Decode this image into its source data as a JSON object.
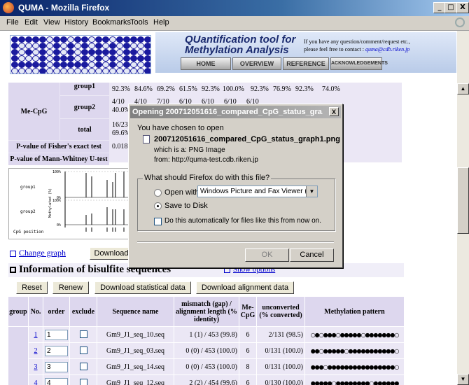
{
  "window": {
    "title": "QUMA - Mozilla Firefox",
    "controls": [
      "_",
      "□",
      "X"
    ]
  },
  "menu": [
    "File",
    "Edit",
    "View",
    "History",
    "Bookmarks",
    "Tools",
    "Help"
  ],
  "header": {
    "title_line1": "QUantification tool for",
    "title_line2": "Methylation Analysis",
    "contact_line1": "If you have any question/comment/request etc.,",
    "contact_line2": "please feel free to contact :",
    "contact_email": "quma@cdb.riken.jp",
    "nav": [
      "HOME",
      "OVERVIEW",
      "REFERENCE",
      "ACKNOWLEDGEMENTS"
    ]
  },
  "results": {
    "group1_label": "group1",
    "group1_values": [
      "92.3%",
      "84.6%",
      "69.2%",
      "61.5%",
      "92.3%",
      "100.0%",
      "92.3%",
      "76.9%",
      "92.3%",
      "74.0%"
    ],
    "mecpg_label": "Me-CpG",
    "group2_label": "group2",
    "group2_top": [
      "4/10",
      "4/10",
      "7/10",
      "6/10",
      "6/10",
      "6/10",
      "6/10"
    ],
    "group2_bottom": "40.0%",
    "total_label": "total",
    "total_top": "16/23",
    "total_bottom": "69.6%",
    "fisher_label": "P-value of Fisher's exact test",
    "fisher_value": "0.018",
    "mw_label": "P-value of Mann-Whitney U-test"
  },
  "graph": {
    "group1_label": "group1",
    "group2_label": "group2",
    "cpg_label": "CpG position",
    "ylabel": "Methylated (%)",
    "tick_100a": "100%",
    "tick_0a": "0%",
    "tick_100b": "100%",
    "tick_0b": "0%"
  },
  "change_graph": "Change graph",
  "download_btn": "Download",
  "bisulfite": {
    "title": "Information of bisulfite sequences",
    "show_options": "Show options",
    "buttons": [
      "Reset",
      "Renew",
      "Download statistical data",
      "Download alignment data"
    ],
    "headers": {
      "group": "group",
      "no": "No.",
      "order": "order",
      "exclude": "exclude",
      "seqname": "Sequence name",
      "mismatch": "mismatch (gap) / alignment length (% identity)",
      "mecpg": "Me-CpG",
      "unconverted": "unconverted (% converted)",
      "pattern": "Methylation pattern"
    },
    "rows": [
      {
        "no": "1",
        "order": "1",
        "name": "Gm9_J1_seq_10.seq",
        "mismatch": "1 (1) / 453 (99.8)",
        "mecpg": "6",
        "unconv": "2/131 (98.5)",
        "pattern": "○●○●●●○●●●●●○●●●●●●●○"
      },
      {
        "no": "2",
        "order": "2",
        "name": "Gm9_J1_seq_03.seq",
        "mismatch": "0 (0) / 453 (100.0)",
        "mecpg": "6",
        "unconv": "0/131 (100.0)",
        "pattern": "●●○●●●●●○●●●●●●●●●●●○"
      },
      {
        "no": "3",
        "order": "3",
        "name": "Gm9_J1_seq_14.seq",
        "mismatch": "0 (0) / 453 (100.0)",
        "mecpg": "8",
        "unconv": "0/131 (100.0)",
        "pattern": "●●●○●●●●●●●●●●●●●●●●○"
      },
      {
        "no": "4",
        "order": "4",
        "name": "Gm9_J1_seq_12.seq",
        "mismatch": "2 (2) / 454 (99.6)",
        "mecpg": "6",
        "unconv": "0/130 (100.0)",
        "pattern": "●●●●●○●●●●●●●●○●●●●●●"
      }
    ]
  },
  "dialog": {
    "title": "Opening 200712051616_compared_CpG_status_gra...",
    "chosen": "You have chosen to open",
    "filename": "200712051616_compared_CpG_status_graph1.png",
    "which_is": "which is a:  PNG Image",
    "from": "from:  http://quma-test.cdb.riken.jp",
    "question": "What should Firefox do with this file?",
    "open_with": "Open with",
    "open_with_app": "Windows Picture and Fax Viewer (d...",
    "save": "Save to Disk",
    "auto": "Do this automatically for files like this from now on.",
    "ok": "OK",
    "cancel": "Cancel"
  }
}
